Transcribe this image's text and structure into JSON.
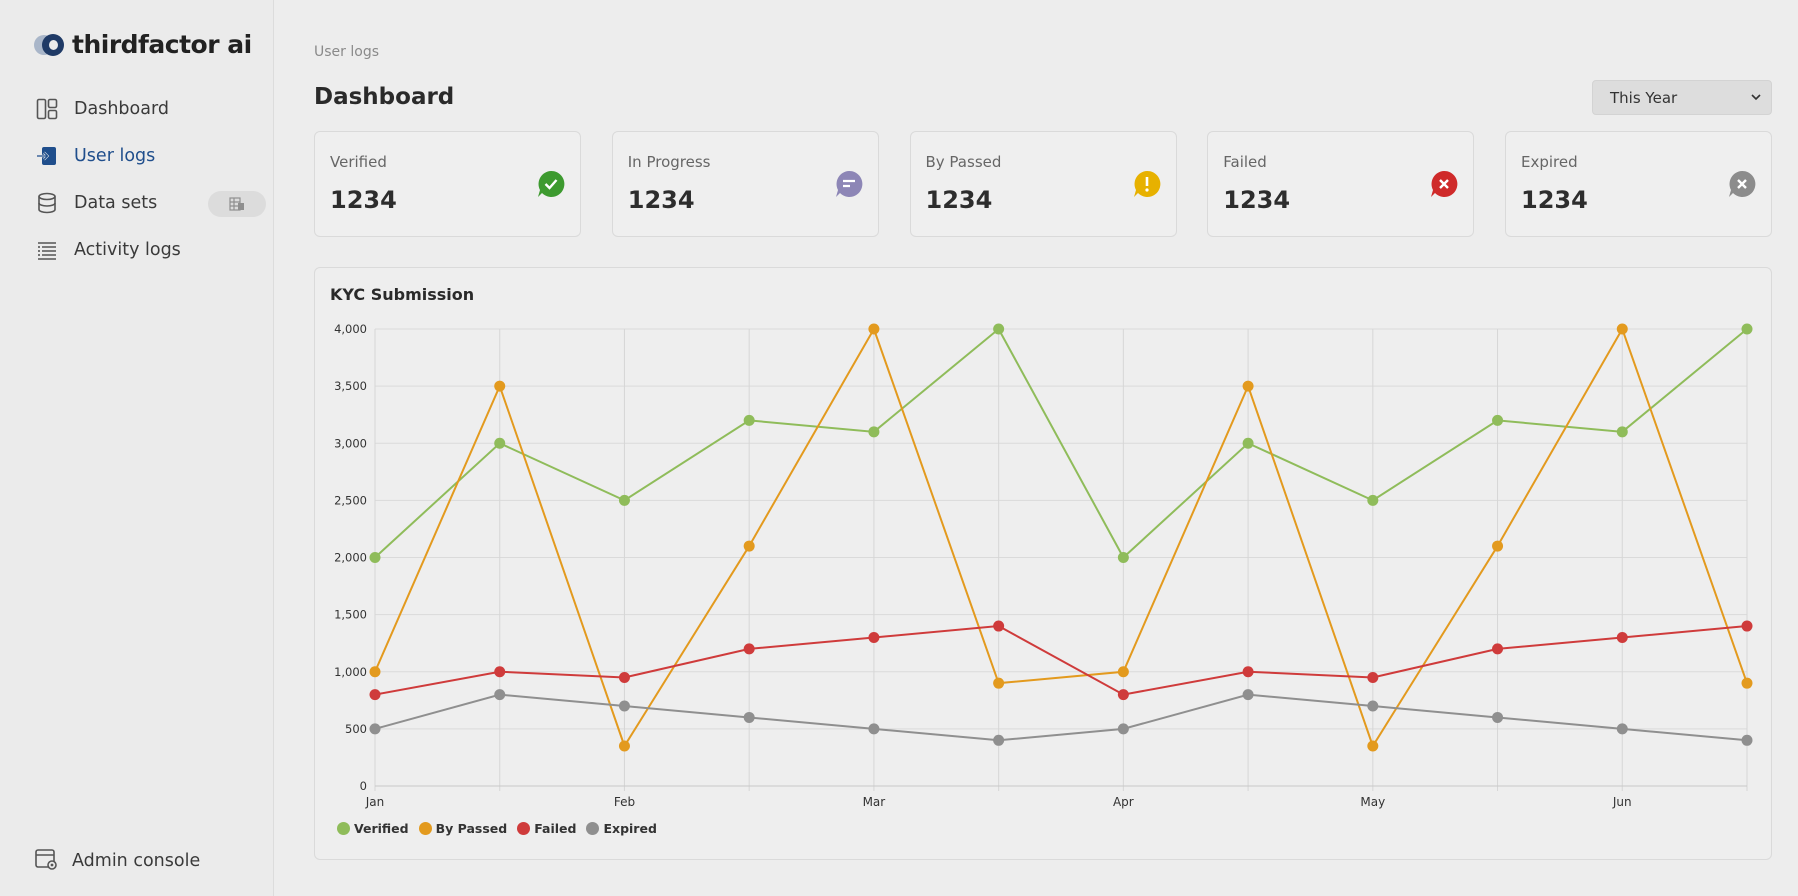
{
  "brand": {
    "name": "thirdfactor ai"
  },
  "sidebar": {
    "items": [
      {
        "label": "Dashboard",
        "icon": "dashboard-icon"
      },
      {
        "label": "User logs",
        "icon": "login-icon",
        "active": true
      },
      {
        "label": "Data sets",
        "icon": "database-icon",
        "badge_icon": "sheet-icon"
      },
      {
        "label": "Activity logs",
        "icon": "list-icon"
      }
    ],
    "footer": {
      "label": "Admin console",
      "icon": "admin-settings-icon"
    }
  },
  "header": {
    "breadcrumb": "User logs",
    "title": "Dashboard",
    "period": {
      "selected": "This Year"
    }
  },
  "stats": [
    {
      "label": "Verified",
      "value": "1234",
      "icon": "check-icon",
      "color": "#3d9a2f"
    },
    {
      "label": "In Progress",
      "value": "1234",
      "icon": "chat-icon",
      "color": "#8d86b6"
    },
    {
      "label": "By Passed",
      "value": "1234",
      "icon": "exclamation-icon",
      "color": "#e7b100"
    },
    {
      "label": "Failed",
      "value": "1234",
      "icon": "x-icon",
      "color": "#cf2a2a"
    },
    {
      "label": "Expired",
      "value": "1234",
      "icon": "x-gray-icon",
      "color": "#8c8c8c"
    }
  ],
  "chart_data": {
    "type": "line",
    "title": "KYC Submission",
    "xlabel": "",
    "ylabel": "",
    "ylim": [
      0,
      4000
    ],
    "yticks": [
      0,
      500,
      1000,
      1500,
      2000,
      2500,
      3000,
      3500,
      4000
    ],
    "ytick_labels": [
      "0",
      "500",
      "1,000",
      "1,500",
      "2,000",
      "2,500",
      "3,000",
      "3,500",
      "4,000"
    ],
    "x_points": 12,
    "x_tick_labels": [
      {
        "index": 0,
        "label": "Jan"
      },
      {
        "index": 2,
        "label": "Feb"
      },
      {
        "index": 4,
        "label": "Mar"
      },
      {
        "index": 6,
        "label": "Apr"
      },
      {
        "index": 8,
        "label": "May"
      },
      {
        "index": 10,
        "label": "Jun"
      }
    ],
    "grid": true,
    "legend_position": "bottom-left",
    "series": [
      {
        "name": "Verified",
        "color": "#8fbc5a",
        "values": [
          2000,
          3000,
          2500,
          3200,
          3100,
          4000,
          2000,
          3000,
          2500,
          3200,
          3100,
          4000
        ]
      },
      {
        "name": "By Passed",
        "color": "#e39a1e",
        "values": [
          1000,
          3500,
          350,
          2100,
          4000,
          900,
          1000,
          3500,
          350,
          2100,
          4000,
          900
        ]
      },
      {
        "name": "Failed",
        "color": "#cf3b3b",
        "values": [
          800,
          1000,
          950,
          1200,
          1300,
          1400,
          800,
          1000,
          950,
          1200,
          1300,
          1400
        ]
      },
      {
        "name": "Expired",
        "color": "#8f8f8f",
        "values": [
          500,
          800,
          700,
          600,
          500,
          400,
          500,
          800,
          700,
          600,
          500,
          400
        ]
      }
    ]
  }
}
